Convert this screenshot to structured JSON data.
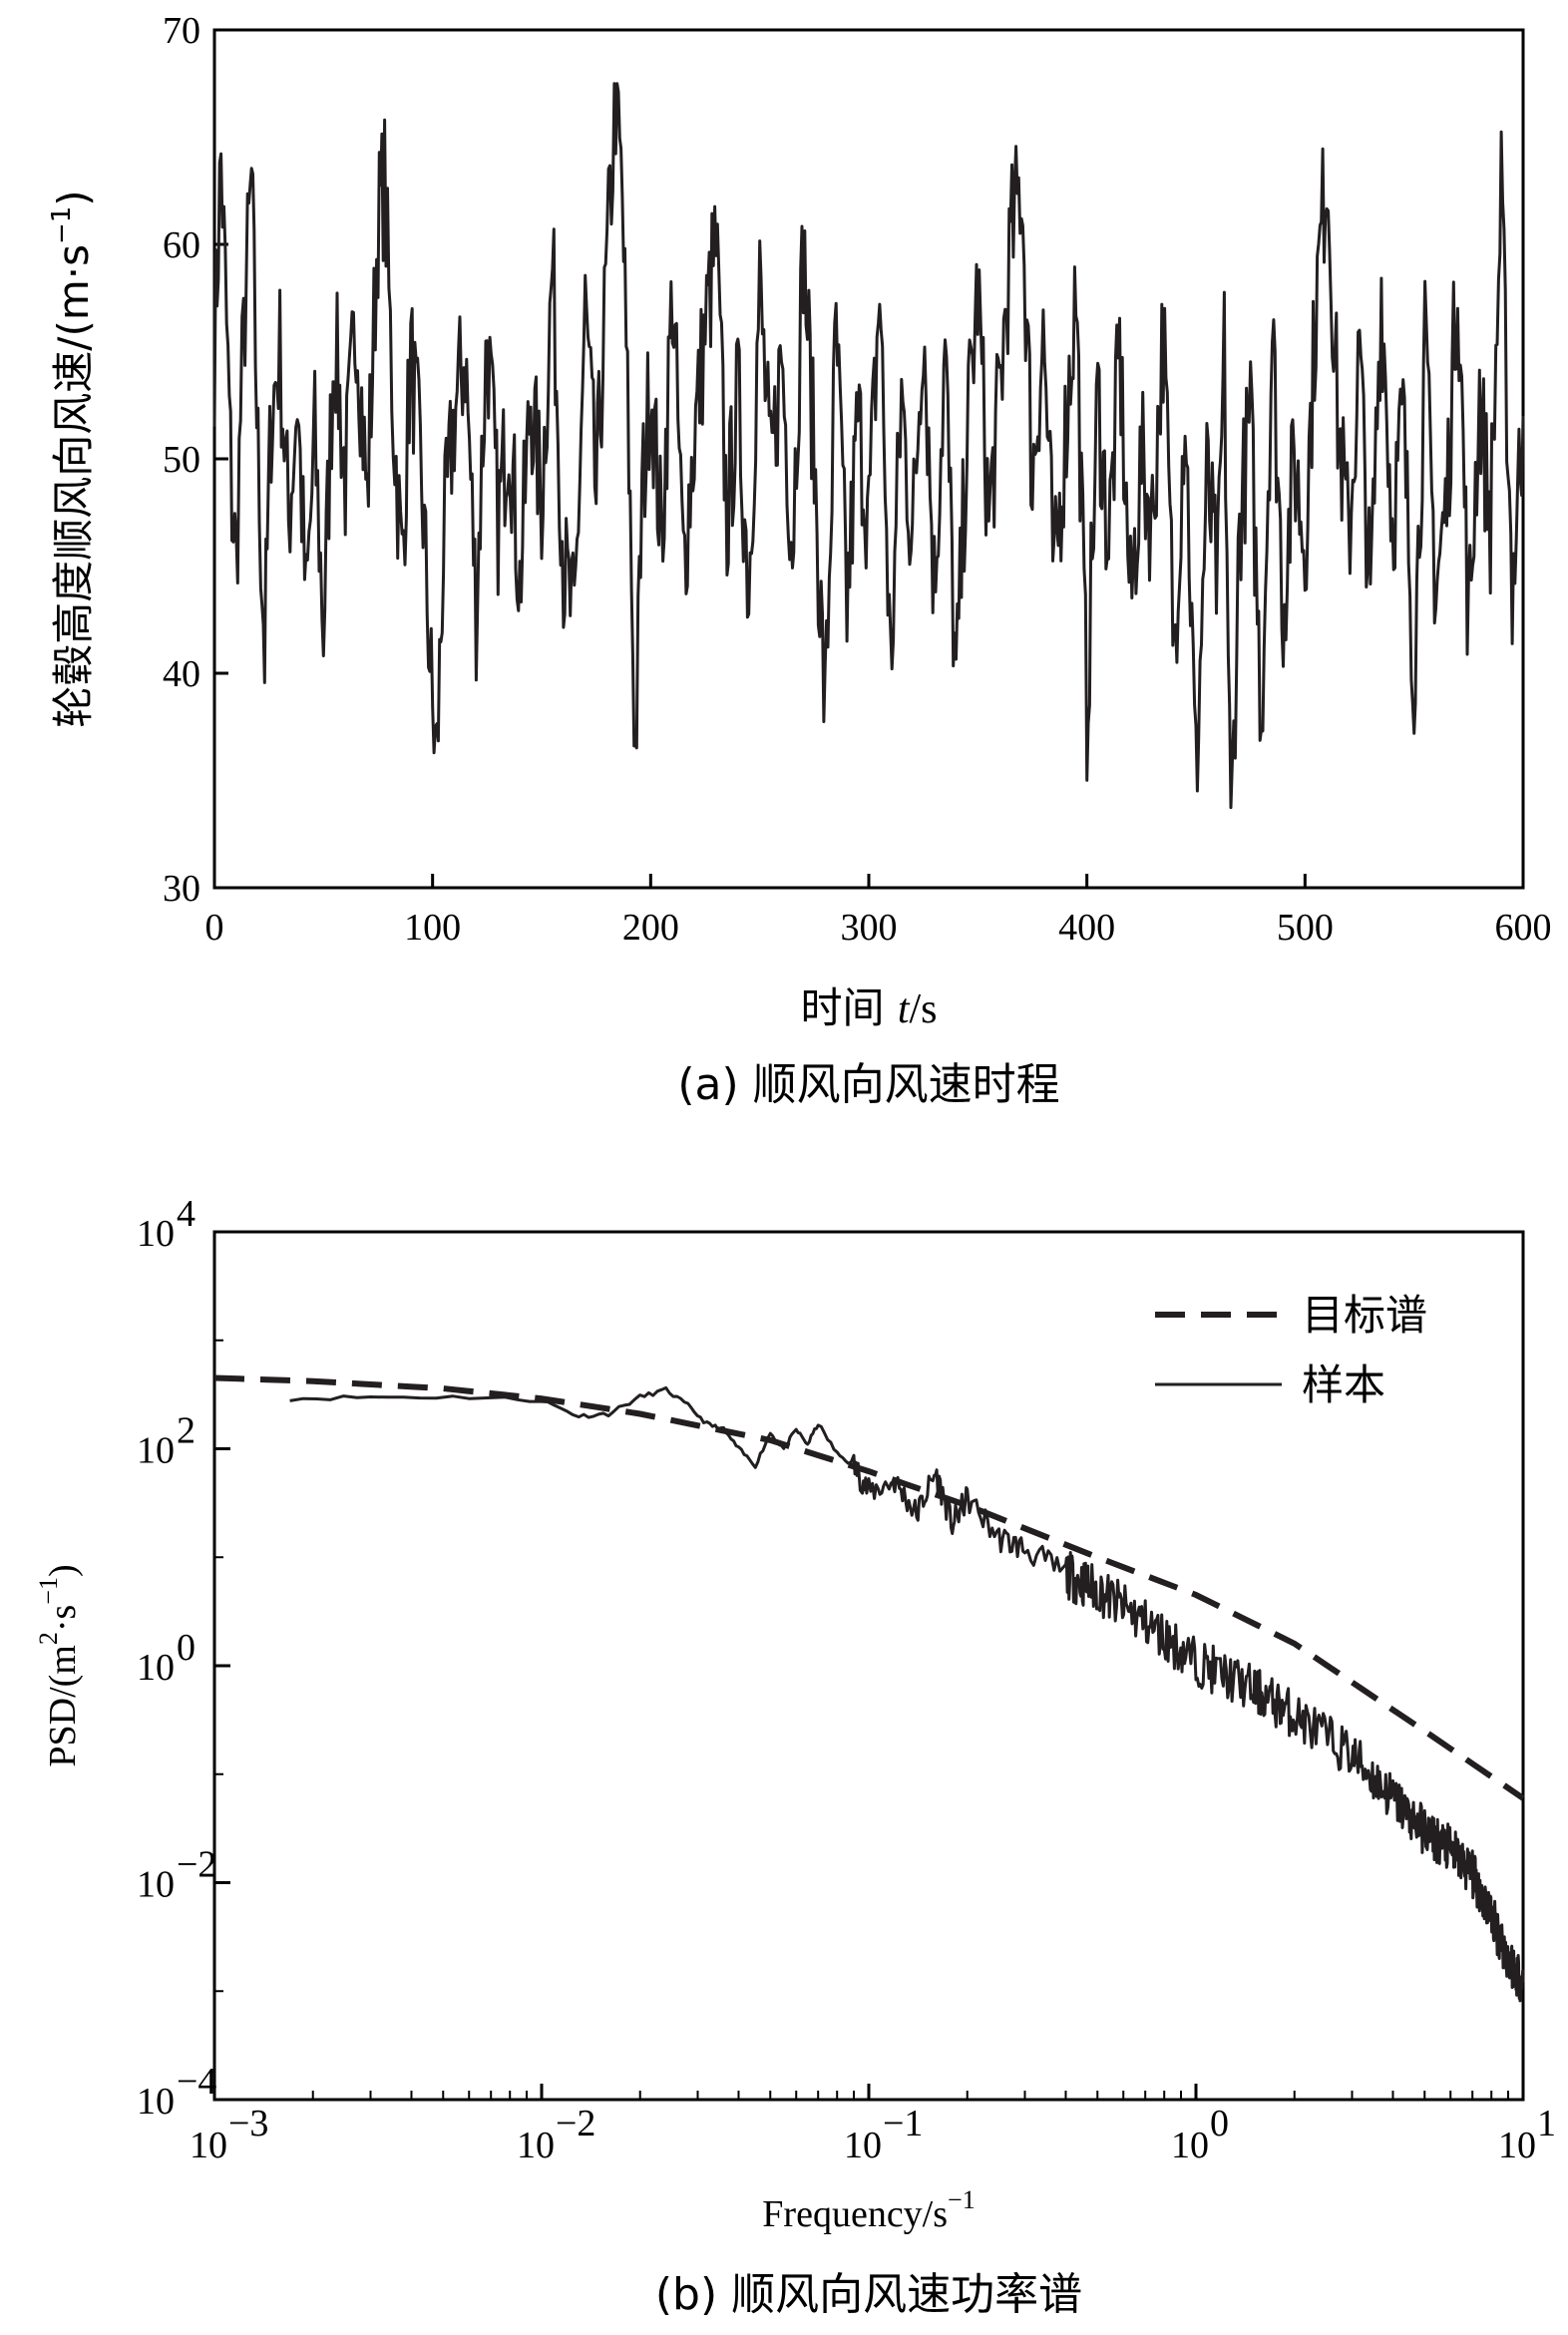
{
  "chart_data": [
    {
      "type": "line",
      "caption": "(a) 顺风向风速时程",
      "xlabel_prefix": "时间 ",
      "xlabel_var": "t",
      "xlabel_unit": "/s",
      "ylabel": "轮毂高度顺风向风速/(m·s",
      "ylabel_exp": "−1",
      "ylabel_close": ")",
      "xlim": [
        0,
        600
      ],
      "ylim": [
        30,
        70
      ],
      "xticks": [
        "0",
        "100",
        "200",
        "300",
        "400",
        "500",
        "600"
      ],
      "yticks": [
        "30",
        "40",
        "50",
        "60",
        "70"
      ],
      "series": [
        {
          "name": "顺风向风速",
          "x": [
            0,
            3,
            5,
            8,
            10,
            12,
            14,
            17,
            20,
            23,
            26,
            30,
            34,
            38,
            42,
            46,
            50,
            55,
            60,
            65,
            70,
            75,
            78,
            82,
            86,
            90,
            95,
            100,
            102,
            105,
            110,
            115,
            120,
            125,
            130,
            135,
            140,
            145,
            150,
            155,
            160,
            165,
            170,
            175,
            180,
            184,
            187,
            190,
            193,
            196,
            200,
            205,
            210,
            215,
            220,
            225,
            230,
            235,
            240,
            245,
            250,
            255,
            260,
            265,
            270,
            275,
            280,
            285,
            290,
            295,
            300,
            305,
            310,
            315,
            320,
            325,
            330,
            335,
            340,
            345,
            350,
            355,
            360,
            365,
            370,
            375,
            380,
            385,
            390,
            395,
            400,
            405,
            410,
            415,
            420,
            425,
            430,
            435,
            440,
            445,
            450,
            455,
            460,
            463,
            466,
            470,
            475,
            480,
            485,
            490,
            495,
            500,
            505,
            510,
            515,
            520,
            525,
            530,
            535,
            540,
            545,
            550,
            555,
            560,
            565,
            570,
            575,
            580,
            585,
            590,
            595,
            600
          ],
          "y": [
            55,
            64,
            58,
            48,
            45,
            52,
            57,
            63,
            50,
            41,
            52,
            55,
            47,
            53,
            43,
            51,
            42,
            56,
            49,
            57,
            48,
            61,
            63,
            52,
            45,
            55,
            49,
            38,
            36,
            46,
            52,
            55,
            43,
            56,
            47,
            52,
            44,
            53,
            48,
            59,
            45,
            42,
            57,
            48,
            59,
            67,
            62,
            50,
            36,
            48,
            54,
            46,
            58,
            45,
            51,
            56,
            60,
            47,
            53,
            44,
            58,
            49,
            55,
            46,
            60,
            50,
            38,
            56,
            43,
            52,
            47,
            58,
            40,
            53,
            46,
            57,
            44,
            55,
            39,
            51,
            58,
            47,
            53,
            60,
            63,
            49,
            56,
            44,
            51,
            58,
            38,
            53,
            46,
            55,
            43,
            50,
            47,
            56,
            41,
            53,
            35,
            49,
            44,
            55,
            32,
            47,
            52,
            38,
            56,
            43,
            50,
            46,
            57,
            64,
            52,
            46,
            55,
            43,
            58,
            47,
            52,
            40,
            55,
            44,
            48,
            59,
            42,
            53,
            47,
            62,
            44,
            52
          ]
        }
      ]
    },
    {
      "type": "line",
      "caption": "(b) 顺风向风速功率谱",
      "xlabel": "Frequency/s",
      "xlabel_exp": "−1",
      "ylabel": "PSD/(m",
      "ylabel_exp1": "2",
      "ylabel_mid": "·s",
      "ylabel_exp2": "−1",
      "ylabel_close": ")",
      "xscale": "log",
      "yscale": "log",
      "xlim": [
        0.001,
        10
      ],
      "ylim": [
        0.0001,
        10000
      ],
      "xticks": [
        {
          "base": "10",
          "exp": "−3"
        },
        {
          "base": "10",
          "exp": "−2"
        },
        {
          "base": "10",
          "exp": "−1"
        },
        {
          "base": "10",
          "exp": "0"
        },
        {
          "base": "10",
          "exp": "1"
        }
      ],
      "yticks": [
        {
          "base": "10",
          "exp": "−4"
        },
        {
          "base": "10",
          "exp": "−2"
        },
        {
          "base": "10",
          "exp": "0"
        },
        {
          "base": "10",
          "exp": "2"
        },
        {
          "base": "10",
          "exp": "4"
        }
      ],
      "legend_position": "top-right",
      "series": [
        {
          "name": "目标谱",
          "style": "dashed",
          "x": [
            0.001,
            0.002,
            0.005,
            0.01,
            0.02,
            0.05,
            0.1,
            0.2,
            0.5,
            1,
            2,
            5,
            10
          ],
          "y": [
            450,
            420,
            360,
            290,
            210,
            120,
            62,
            30,
            10,
            4.5,
            1.6,
            0.25,
            0.06
          ]
        },
        {
          "name": "样本",
          "style": "solid",
          "x": [
            0.0017,
            0.003,
            0.006,
            0.01,
            0.013,
            0.016,
            0.02,
            0.024,
            0.028,
            0.032,
            0.036,
            0.04,
            0.045,
            0.05,
            0.055,
            0.06,
            0.065,
            0.07,
            0.08,
            0.09,
            0.1,
            0.12,
            0.14,
            0.16,
            0.18,
            0.2,
            0.25,
            0.3,
            0.4,
            0.5,
            0.7,
            1,
            1.5,
            2,
            3,
            4,
            5,
            6,
            7,
            8,
            9,
            10
          ],
          "y": [
            290,
            300,
            300,
            280,
            200,
            210,
            300,
            350,
            250,
            170,
            150,
            100,
            70,
            140,
            100,
            150,
            110,
            170,
            90,
            70,
            40,
            50,
            25,
            60,
            20,
            35,
            15,
            12,
            7,
            5,
            2.5,
            1.1,
            0.6,
            0.35,
            0.15,
            0.06,
            0.03,
            0.02,
            0.012,
            0.005,
            0.002,
            0.0012
          ]
        }
      ]
    }
  ]
}
